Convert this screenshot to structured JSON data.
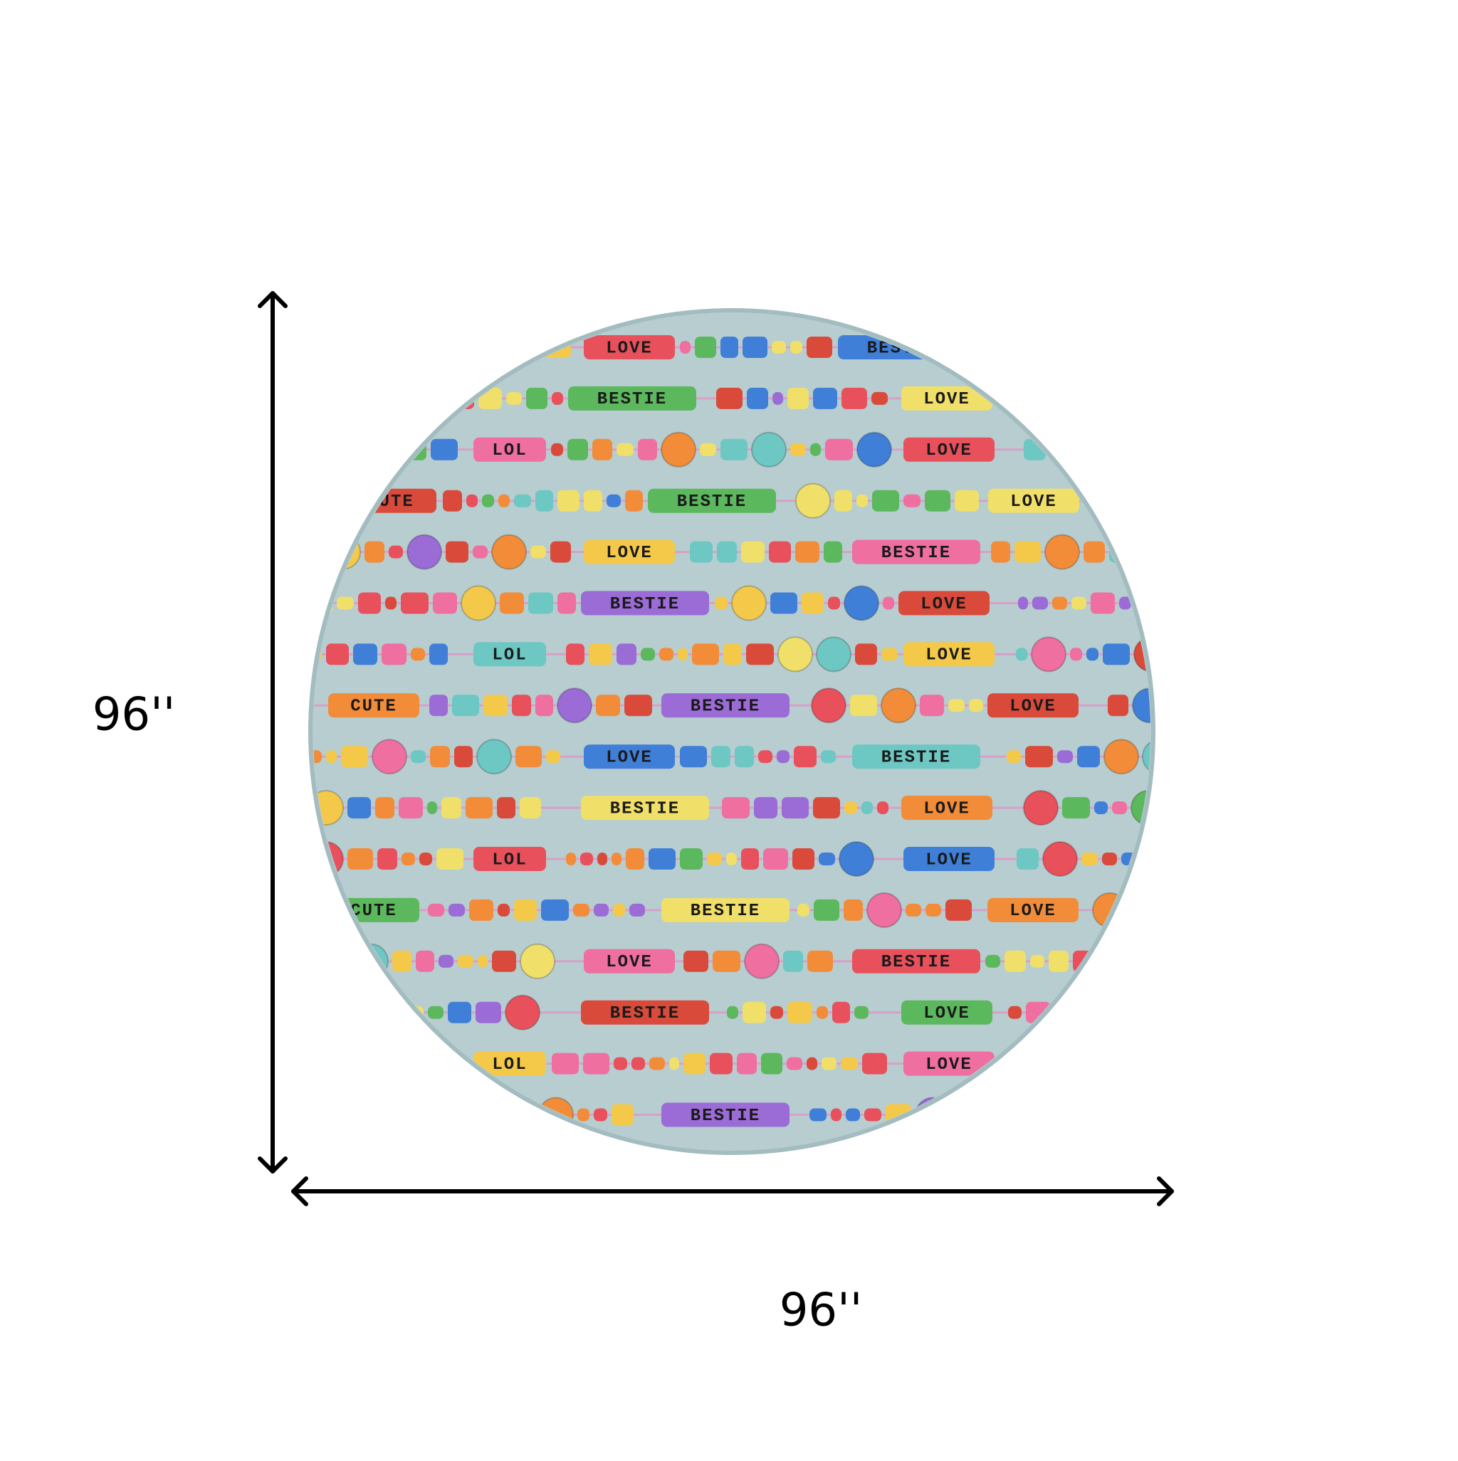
{
  "dimensions": {
    "height_label": "96''",
    "width_label": "96''"
  },
  "rug": {
    "rows": [
      {
        "words": [
          "LOVE",
          "BESTIE"
        ]
      },
      {
        "words": [
          "BESTIE",
          "LOVE"
        ]
      },
      {
        "words": [
          "LOL",
          "LOVE"
        ]
      },
      {
        "words": [
          "CUTE",
          "BESTIE",
          "LOVE"
        ]
      },
      {
        "words": [
          "LOVE",
          "BESTIE"
        ]
      },
      {
        "words": [
          "BESTIE",
          "LOVE"
        ]
      },
      {
        "words": [
          "LOL",
          "LOVE"
        ]
      },
      {
        "words": [
          "CUTE",
          "BESTIE",
          "LOVE"
        ]
      },
      {
        "words": [
          "LOVE",
          "BESTIE"
        ]
      },
      {
        "words": [
          "BESTIE",
          "LOVE"
        ]
      },
      {
        "words": [
          "LOL",
          "LOVE"
        ]
      },
      {
        "words": [
          "CUTE",
          "BESTIE",
          "LOVE"
        ]
      },
      {
        "words": [
          "LOVE",
          "BESTIE"
        ]
      },
      {
        "words": [
          "BESTIE",
          "LOVE"
        ]
      },
      {
        "words": [
          "LOL",
          "LOVE"
        ]
      },
      {
        "words": [
          "BESTIE"
        ]
      }
    ]
  }
}
